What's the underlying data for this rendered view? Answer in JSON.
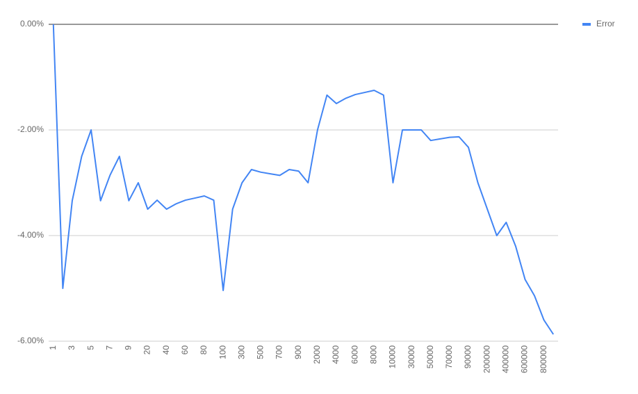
{
  "chart_data": {
    "type": "line",
    "categories": [
      "1",
      null,
      "3",
      null,
      "5",
      null,
      "7",
      null,
      "9",
      null,
      "20",
      null,
      "40",
      null,
      "60",
      null,
      "80",
      null,
      "100",
      null,
      "300",
      null,
      "500",
      null,
      "700",
      null,
      "900",
      null,
      "2000",
      null,
      "4000",
      null,
      "6000",
      null,
      "8000",
      null,
      "10000",
      null,
      "30000",
      null,
      "50000",
      null,
      "70000",
      null,
      "90000",
      null,
      "200000",
      null,
      "400000",
      null,
      "600000",
      null,
      "800000",
      null
    ],
    "series": [
      {
        "name": "Error",
        "color": "#4285f4",
        "values": [
          0,
          -5.0,
          -3.34,
          -2.5,
          -2.0,
          -3.34,
          -2.86,
          -2.5,
          -3.34,
          -3.0,
          -3.5,
          -3.33,
          -3.5,
          -3.4,
          -3.33,
          -3.29,
          -3.25,
          -3.33,
          -5.04,
          -3.5,
          -3.0,
          -2.75,
          -2.8,
          -2.83,
          -2.86,
          -2.75,
          -2.78,
          -3.0,
          -2.0,
          -1.34,
          -1.5,
          -1.4,
          -1.33,
          -1.29,
          -1.25,
          -1.34,
          -3.0,
          -2.0,
          -2.0,
          -2.0,
          -2.2,
          -2.17,
          -2.14,
          -2.13,
          -2.33,
          -3.0,
          -3.5,
          -4.0,
          -3.75,
          -4.2,
          -4.83,
          -5.14,
          -5.6,
          -5.87
        ]
      }
    ],
    "ylim": [
      -6,
      0
    ],
    "yticks": [
      {
        "value": 0,
        "label": "0.00%"
      },
      {
        "value": -2,
        "label": "-2.00%"
      },
      {
        "value": -4,
        "label": "-4.00%"
      },
      {
        "value": -6,
        "label": "-6.00%"
      }
    ],
    "grid": true,
    "legend": "right"
  }
}
